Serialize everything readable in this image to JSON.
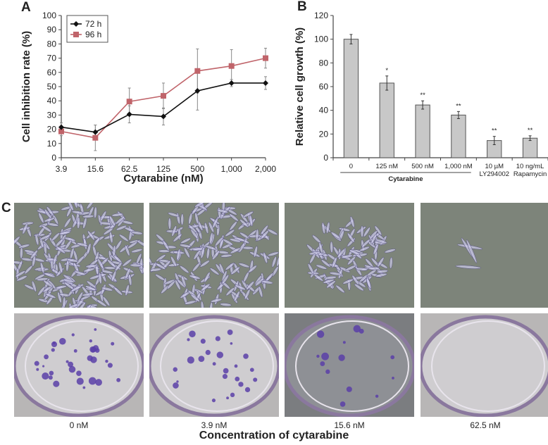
{
  "panels": {
    "A": {
      "letter": "A"
    },
    "B": {
      "letter": "B"
    },
    "C": {
      "letter": "C"
    }
  },
  "chart_data": [
    {
      "type": "line",
      "panel": "A",
      "title": "",
      "xlabel": "Cytarabine (nM)",
      "ylabel": "Cell inhibition rate (%)",
      "categories": [
        "3.9",
        "15.6",
        "62.5",
        "125",
        "500",
        "1,000",
        "2,000"
      ],
      "yticks": [
        0,
        10,
        20,
        30,
        40,
        50,
        60,
        70,
        80,
        90,
        100
      ],
      "ylim": [
        0,
        100
      ],
      "grid": false,
      "legend_position": "top-left (inside)",
      "series": [
        {
          "name": "72 h",
          "color": "#111111",
          "marker": "diamond",
          "values": [
            21.5,
            18,
            30.5,
            29,
            47,
            52.5,
            52.5
          ],
          "errors": [
            3,
            5,
            6,
            6,
            13.5,
            2.5,
            4.5
          ]
        },
        {
          "name": "96 h",
          "color": "#c0646a",
          "marker": "square",
          "values": [
            18.5,
            14,
            39.5,
            43.5,
            61,
            64.5,
            70
          ],
          "errors": [
            3,
            9,
            9.5,
            9,
            15.5,
            11.5,
            7
          ]
        }
      ]
    },
    {
      "type": "bar",
      "panel": "B",
      "title": "",
      "xlabel": "",
      "ylabel": "Relative cell growth (%)",
      "categories": [
        "0",
        "125 nM",
        "500 nM",
        "1,000 nM",
        "10 µM LY294002",
        "10 ng/mL Rapamycin"
      ],
      "category_lines": [
        [
          "0"
        ],
        [
          "125 nM"
        ],
        [
          "500 nM"
        ],
        [
          "1,000 nM"
        ],
        [
          "10 µM",
          "LY294002"
        ],
        [
          "10 ng/mL",
          "Rapamycin"
        ]
      ],
      "group_label": "Cytarabine",
      "group_span": [
        "0",
        "1,000 nM"
      ],
      "values": [
        100,
        63,
        44.5,
        36,
        14.5,
        16.5
      ],
      "errors": [
        4,
        6,
        3.5,
        3,
        3.5,
        2
      ],
      "significance": [
        "",
        "*",
        "**",
        "**",
        "**",
        "**"
      ],
      "yticks": [
        0,
        20,
        40,
        60,
        80,
        100,
        120
      ],
      "ylim": [
        0,
        120
      ],
      "bar_color": "#c8c8c8",
      "grid": false
    }
  ],
  "figure_c": {
    "row1_description": "Phase-contrast micrographs of cells",
    "row2_description": "Crystal violet stained colony formation dishes",
    "captions": [
      "0 nM",
      "3.9 nM",
      "15.6 nM",
      "62.5 nM"
    ],
    "xtitle": "Concentration of cytarabine"
  }
}
